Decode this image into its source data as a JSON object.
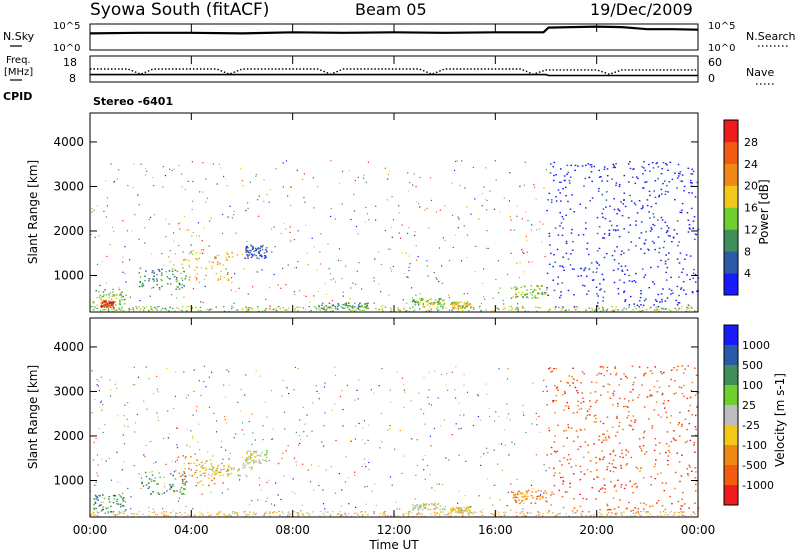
{
  "header": {
    "station": "Syowa South (fitACF)",
    "beam": "Beam 05",
    "date": "19/Dec/2009"
  },
  "strip1": {
    "left_label": "N.Sky",
    "right_label": "N.Search",
    "ticks_left": [
      "10^5",
      "10^0"
    ],
    "ticks_right": [
      "10^5",
      "10^0"
    ]
  },
  "strip2": {
    "left_label_line1": "Freq.",
    "left_label_line2": "[MHz]",
    "right_label": "Nave",
    "ticks_left": [
      "18",
      "8"
    ],
    "ticks_right": [
      "60",
      "0"
    ]
  },
  "cpid": {
    "label": "CPID",
    "value": "Stereo -6401"
  },
  "x_axis": {
    "label": "Time UT",
    "ticks": [
      "00:00",
      "04:00",
      "08:00",
      "12:00",
      "16:00",
      "20:00",
      "00:00"
    ]
  },
  "colors": {
    "power_scale": [
      "#1a1aff",
      "#2a5aa8",
      "#3f8f5a",
      "#6fcf2e",
      "#f4c81b",
      "#f08a16",
      "#f25c12",
      "#ee1c1c"
    ],
    "velocity_scale": [
      "#ee1c1c",
      "#f25c12",
      "#f08a16",
      "#f4c81b",
      "#bdbdbd",
      "#6fcf2e",
      "#3f8f5a",
      "#2a5aa8",
      "#1a1aff"
    ]
  },
  "chart_data": [
    {
      "type": "line",
      "name": "noise_strip",
      "x_range_hours": [
        0,
        24
      ],
      "series": [
        {
          "name": "N.Sky",
          "points": [
            [
              0,
              3.2
            ],
            [
              2,
              3.3
            ],
            [
              4,
              3.3
            ],
            [
              6,
              3.2
            ],
            [
              8,
              3.4
            ],
            [
              10,
              3.3
            ],
            [
              12,
              3.4
            ],
            [
              14,
              3.3
            ],
            [
              16,
              3.4
            ],
            [
              17.9,
              3.4
            ],
            [
              18.1,
              4.3
            ],
            [
              19,
              4.4
            ],
            [
              20,
              4.5
            ],
            [
              21,
              4.4
            ],
            [
              22,
              4.0
            ],
            [
              23,
              4.0
            ],
            [
              24,
              3.9
            ]
          ]
        }
      ]
    },
    {
      "type": "line",
      "name": "frequency_nave_strip",
      "x_range_hours": [
        0,
        24
      ],
      "series": [
        {
          "name": "Freq.",
          "points": [
            [
              0,
              10
            ],
            [
              18,
              10
            ],
            [
              18.1,
              9.5
            ],
            [
              24,
              9.5
            ]
          ]
        },
        {
          "name": "Nave",
          "points": [
            [
              0,
              30
            ],
            [
              1.5,
              30
            ],
            [
              2,
              18
            ],
            [
              2.5,
              30
            ],
            [
              5,
              30
            ],
            [
              5.5,
              18
            ],
            [
              6,
              30
            ],
            [
              9,
              30
            ],
            [
              9.5,
              18
            ],
            [
              10,
              30
            ],
            [
              13,
              30
            ],
            [
              13.5,
              18
            ],
            [
              14,
              30
            ],
            [
              17,
              30
            ],
            [
              17.5,
              18
            ],
            [
              18,
              28
            ],
            [
              20,
              28
            ],
            [
              20.5,
              18
            ],
            [
              21,
              28
            ],
            [
              24,
              28
            ]
          ]
        }
      ]
    },
    {
      "type": "heatmap",
      "name": "power_panel",
      "xlabel": "Time UT",
      "ylabel": "Slant Range [km]",
      "x_range_hours": [
        0,
        24
      ],
      "ylim": [
        180,
        4650
      ],
      "yticks": [
        1000,
        2000,
        3000,
        4000
      ],
      "colorbar": {
        "label": "Power [dB]",
        "ticks": [
          4,
          8,
          12,
          16,
          20,
          24,
          28
        ],
        "range": [
          0,
          32
        ]
      },
      "regions": [
        {
          "t0": 0.1,
          "t1": 1.4,
          "r0": 300,
          "r1": 700,
          "level": 3
        },
        {
          "t0": 0.4,
          "t1": 0.9,
          "r0": 300,
          "r1": 450,
          "level": 7
        },
        {
          "t0": 1.9,
          "t1": 3.8,
          "r0": 700,
          "r1": 1200,
          "level": 2
        },
        {
          "t0": 3.4,
          "t1": 5.6,
          "r0": 900,
          "r1": 1600,
          "level": 4
        },
        {
          "t0": 6.1,
          "t1": 7.0,
          "r0": 1400,
          "r1": 1700,
          "level": 1
        },
        {
          "t0": 9.0,
          "t1": 11.0,
          "r0": 250,
          "r1": 400,
          "level": 2
        },
        {
          "t0": 12.7,
          "t1": 14.0,
          "r0": 350,
          "r1": 500,
          "level": 3
        },
        {
          "t0": 14.2,
          "t1": 15.0,
          "r0": 280,
          "r1": 420,
          "level": 4
        },
        {
          "t0": 16.6,
          "t1": 18.0,
          "r0": 500,
          "r1": 800,
          "level": 3
        },
        {
          "t0": 18.0,
          "t1": 24.0,
          "r0": 300,
          "r1": 3600,
          "level": 0
        }
      ]
    },
    {
      "type": "heatmap",
      "name": "velocity_panel",
      "xlabel": "Time UT",
      "ylabel": "Slant Range [km]",
      "x_range_hours": [
        0,
        24
      ],
      "ylim": [
        180,
        4650
      ],
      "yticks": [
        1000,
        2000,
        3000,
        4000
      ],
      "colorbar": {
        "label": "Velocity [m s-1]",
        "ticks": [
          1000,
          500,
          100,
          25,
          -25,
          -100,
          -500,
          -1000
        ]
      },
      "regions": [
        {
          "t0": 0.1,
          "t1": 1.4,
          "r0": 300,
          "r1": 700,
          "level": 6
        },
        {
          "t0": 1.9,
          "t1": 3.8,
          "r0": 700,
          "r1": 1200,
          "level": 6
        },
        {
          "t0": 3.4,
          "t1": 5.6,
          "r0": 900,
          "r1": 1600,
          "level": 2
        },
        {
          "t0": 4.2,
          "t1": 6.4,
          "r0": 1100,
          "r1": 1400,
          "level": 4
        },
        {
          "t0": 6.1,
          "t1": 7.0,
          "r0": 1400,
          "r1": 1700,
          "level": 4
        },
        {
          "t0": 12.7,
          "t1": 14.0,
          "r0": 350,
          "r1": 500,
          "level": 4
        },
        {
          "t0": 14.2,
          "t1": 15.0,
          "r0": 280,
          "r1": 420,
          "level": 3
        },
        {
          "t0": 16.6,
          "t1": 18.0,
          "r0": 500,
          "r1": 800,
          "level": 2
        },
        {
          "t0": 18.0,
          "t1": 24.0,
          "r0": 300,
          "r1": 3600,
          "level": 1
        }
      ]
    }
  ]
}
